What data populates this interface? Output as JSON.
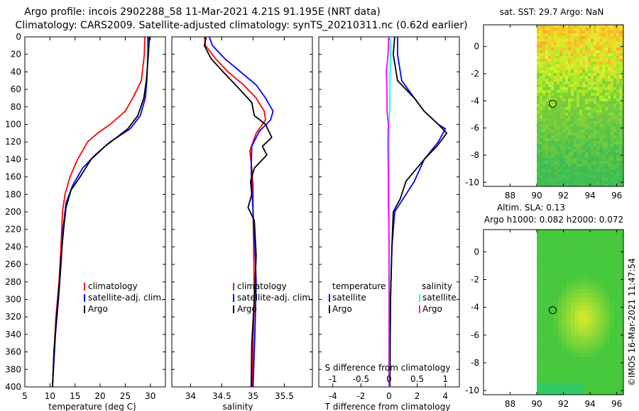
{
  "title": {
    "line1": "Argo profile: incois 2902288_58 11-Mar-2021 4.21S 91.195E (NRT data)",
    "line2": "Climatology: CARS2009. Satellite-adjusted climatology: synTS_20210311.nc (0.62d earlier)"
  },
  "colors": {
    "climatology": "#ff0000",
    "satellite": "#0000ff",
    "argo": "#000000",
    "temp_diff": "#ff00ff",
    "sal_diff": "#00ffff"
  },
  "depth_ticks": [
    "0",
    "20",
    "40",
    "60",
    "80",
    "100",
    "120",
    "140",
    "160",
    "180",
    "200",
    "220",
    "240",
    "260",
    "280",
    "300",
    "320",
    "340",
    "360",
    "380",
    "400"
  ],
  "chart_data": [
    {
      "type": "line",
      "id": "temperature",
      "xlabel": "temperature (deg C)",
      "xlim": [
        5,
        33
      ],
      "ylim": [
        0,
        400
      ],
      "xticks": [
        "5",
        "10",
        "15",
        "20",
        "25",
        "30"
      ],
      "legend": [
        "climatology",
        "satellite-adj. clim.",
        "Argo"
      ],
      "series": [
        {
          "name": "climatology",
          "color": "#ff0000",
          "points": [
            [
              28.9,
              0
            ],
            [
              28.8,
              20
            ],
            [
              28.2,
              50
            ],
            [
              26.5,
              70
            ],
            [
              25,
              85
            ],
            [
              22,
              100
            ],
            [
              19.5,
              110
            ],
            [
              17.5,
              120
            ],
            [
              15.5,
              140
            ],
            [
              14,
              160
            ],
            [
              13,
              180
            ],
            [
              12.5,
              200
            ],
            [
              12.2,
              240
            ],
            [
              11.8,
              280
            ],
            [
              11.2,
              320
            ],
            [
              10.8,
              360
            ],
            [
              10.5,
              400
            ]
          ]
        },
        {
          "name": "satellite-adj. clim.",
          "color": "#0000ff",
          "points": [
            [
              29.5,
              0
            ],
            [
              29.5,
              20
            ],
            [
              29.3,
              50
            ],
            [
              29,
              70
            ],
            [
              28,
              90
            ],
            [
              26,
              105
            ],
            [
              22,
              120
            ],
            [
              19,
              135
            ],
            [
              16.5,
              150
            ],
            [
              14.5,
              170
            ],
            [
              13.2,
              190
            ],
            [
              12.6,
              220
            ],
            [
              12.2,
              260
            ],
            [
              11.7,
              300
            ],
            [
              11.1,
              340
            ],
            [
              10.7,
              380
            ],
            [
              10.5,
              400
            ]
          ]
        },
        {
          "name": "Argo",
          "color": "#000000",
          "points": [
            [
              29.8,
              0
            ],
            [
              29.6,
              20
            ],
            [
              29.2,
              50
            ],
            [
              28.7,
              70
            ],
            [
              27.5,
              90
            ],
            [
              25.5,
              105
            ],
            [
              21,
              125
            ],
            [
              18.2,
              140
            ],
            [
              16,
              160
            ],
            [
              14.2,
              175
            ],
            [
              13.2,
              195
            ],
            [
              12.8,
              215
            ],
            [
              12.4,
              240
            ],
            [
              11.9,
              280
            ],
            [
              11.3,
              320
            ],
            [
              10.8,
              360
            ],
            [
              10.5,
              400
            ]
          ]
        }
      ]
    },
    {
      "type": "line",
      "id": "salinity",
      "xlabel": "salinity",
      "xlim": [
        33.7,
        35.95
      ],
      "ylim": [
        0,
        400
      ],
      "xticks": [
        "34",
        "34.5",
        "35",
        "35.5"
      ],
      "legend": [
        "climatology",
        "satellite-adj. clim.",
        "Argo"
      ],
      "series": [
        {
          "name": "climatology",
          "color": "#ff0000",
          "points": [
            [
              34.22,
              0
            ],
            [
              34.24,
              10
            ],
            [
              34.4,
              25
            ],
            [
              34.6,
              40
            ],
            [
              34.85,
              55
            ],
            [
              35.05,
              70
            ],
            [
              35.18,
              85
            ],
            [
              35.2,
              95
            ],
            [
              35.05,
              110
            ],
            [
              34.95,
              130
            ],
            [
              34.98,
              150
            ],
            [
              35,
              170
            ],
            [
              35,
              200
            ],
            [
              35.01,
              240
            ],
            [
              35.02,
              300
            ],
            [
              35,
              350
            ],
            [
              34.99,
              400
            ]
          ]
        },
        {
          "name": "satellite-adj. clim.",
          "color": "#0000ff",
          "points": [
            [
              34.3,
              0
            ],
            [
              34.35,
              10
            ],
            [
              34.55,
              25
            ],
            [
              34.8,
              40
            ],
            [
              35.05,
              55
            ],
            [
              35.2,
              70
            ],
            [
              35.32,
              85
            ],
            [
              35.28,
              95
            ],
            [
              35.1,
              108
            ],
            [
              34.98,
              125
            ],
            [
              34.97,
              150
            ],
            [
              34.98,
              170
            ],
            [
              35,
              200
            ],
            [
              35.03,
              240
            ],
            [
              35.05,
              280
            ],
            [
              35.03,
              340
            ],
            [
              35,
              400
            ]
          ]
        },
        {
          "name": "Argo",
          "color": "#000000",
          "points": [
            [
              34.25,
              0
            ],
            [
              34.22,
              10
            ],
            [
              34.33,
              25
            ],
            [
              34.52,
              40
            ],
            [
              34.72,
              55
            ],
            [
              34.98,
              75
            ],
            [
              35.02,
              90
            ],
            [
              35.2,
              100
            ],
            [
              35.3,
              115
            ],
            [
              35.15,
              125
            ],
            [
              35.22,
              135
            ],
            [
              35.02,
              150
            ],
            [
              34.96,
              165
            ],
            [
              34.98,
              180
            ],
            [
              34.92,
              195
            ],
            [
              35.02,
              210
            ],
            [
              35.05,
              250
            ],
            [
              35.02,
              300
            ],
            [
              34.98,
              350
            ],
            [
              34.97,
              400
            ]
          ]
        }
      ]
    },
    {
      "type": "line",
      "id": "differences",
      "xlabel": "T difference from climatology",
      "xlim": [
        -5,
        5
      ],
      "ylim": [
        0,
        400
      ],
      "xticks": [
        "-4",
        "-2",
        "0",
        "2",
        "4"
      ],
      "secondary_xlabel": "S difference from climatology",
      "secondary_xticks": [
        "-1",
        "-0.5",
        "0",
        "0.5",
        "1"
      ],
      "legend_temperature": {
        "title": "temperature",
        "items": [
          "satellite",
          "Argo"
        ]
      },
      "legend_salinity": {
        "title": "salinity",
        "items": [
          "satellite",
          "Argo"
        ]
      },
      "series": [
        {
          "name": "temperature satellite",
          "color": "#0000ff",
          "points": [
            [
              0.6,
              0
            ],
            [
              0.6,
              20
            ],
            [
              0.9,
              50
            ],
            [
              1.8,
              70
            ],
            [
              2.5,
              85
            ],
            [
              3.5,
              100
            ],
            [
              4,
              105
            ],
            [
              3.5,
              120
            ],
            [
              2.5,
              140
            ],
            [
              1.8,
              165
            ],
            [
              1,
              185
            ],
            [
              0.4,
              200
            ],
            [
              0.2,
              240
            ],
            [
              0.1,
              300
            ],
            [
              0.05,
              400
            ]
          ]
        },
        {
          "name": "temperature Argo",
          "color": "#000000",
          "points": [
            [
              0.4,
              0
            ],
            [
              0.3,
              20
            ],
            [
              0.6,
              50
            ],
            [
              1.8,
              70
            ],
            [
              2.5,
              85
            ],
            [
              3.5,
              100
            ],
            [
              4.1,
              110
            ],
            [
              3.4,
              125
            ],
            [
              2.5,
              140
            ],
            [
              1.2,
              165
            ],
            [
              0.8,
              185
            ],
            [
              0.3,
              200
            ],
            [
              0.2,
              240
            ],
            [
              0.1,
              300
            ],
            [
              0.05,
              400
            ]
          ]
        },
        {
          "name": "salinity satellite",
          "color": "#00ffff",
          "points": [
            [
              0.08,
              0
            ],
            [
              0.09,
              20
            ],
            [
              0.07,
              50
            ],
            [
              0.05,
              80
            ],
            [
              0,
              100
            ],
            [
              -0.01,
              150
            ],
            [
              -0.01,
              200
            ],
            [
              -0.01,
              250
            ],
            [
              -0.01,
              300
            ],
            [
              -0.01,
              350
            ],
            [
              -0.02,
              400
            ]
          ]
        },
        {
          "name": "salinity Argo",
          "color": "#ff00ff",
          "points": [
            [
              -0.03,
              0
            ],
            [
              -0.07,
              20
            ],
            [
              -0.2,
              40
            ],
            [
              -0.15,
              60
            ],
            [
              -0.14,
              85
            ],
            [
              -0.05,
              100
            ],
            [
              -0.08,
              120
            ],
            [
              -0.05,
              160
            ],
            [
              -0.05,
              190
            ],
            [
              -0.02,
              210
            ],
            [
              0,
              240
            ],
            [
              0,
              300
            ],
            [
              0,
              350
            ],
            [
              0,
              400
            ]
          ]
        }
      ]
    },
    {
      "type": "heatmap",
      "id": "sst_map",
      "title": "sat. SST: 29.7 Argo: NaN",
      "xlim": [
        86,
        96.5
      ],
      "ylim": [
        -10.3,
        1.6
      ],
      "xticks": [
        "88",
        "90",
        "92",
        "94",
        "96"
      ],
      "yticks": [
        "0",
        "-2",
        "-4",
        "-6",
        "-8",
        "-10"
      ],
      "data_lon_min": 90,
      "argo_position": {
        "lon": 91.195,
        "lat": -4.21
      }
    },
    {
      "type": "heatmap",
      "id": "sla_map",
      "title": "Altim. SLA: 0.13",
      "subtitle": "Argo h1000: 0.082 h2000: 0.072",
      "xlim": [
        86,
        96.5
      ],
      "ylim": [
        -10.3,
        1.6
      ],
      "xticks": [
        "88",
        "90",
        "92",
        "94",
        "96"
      ],
      "yticks": [
        "0",
        "-2",
        "-4",
        "-6",
        "-8",
        "-10"
      ],
      "data_lon_min": 90,
      "argo_position": {
        "lon": 91.195,
        "lat": -4.21
      }
    }
  ],
  "footer_credit": "©IMOS 16-Mar-2021 11:47:54"
}
